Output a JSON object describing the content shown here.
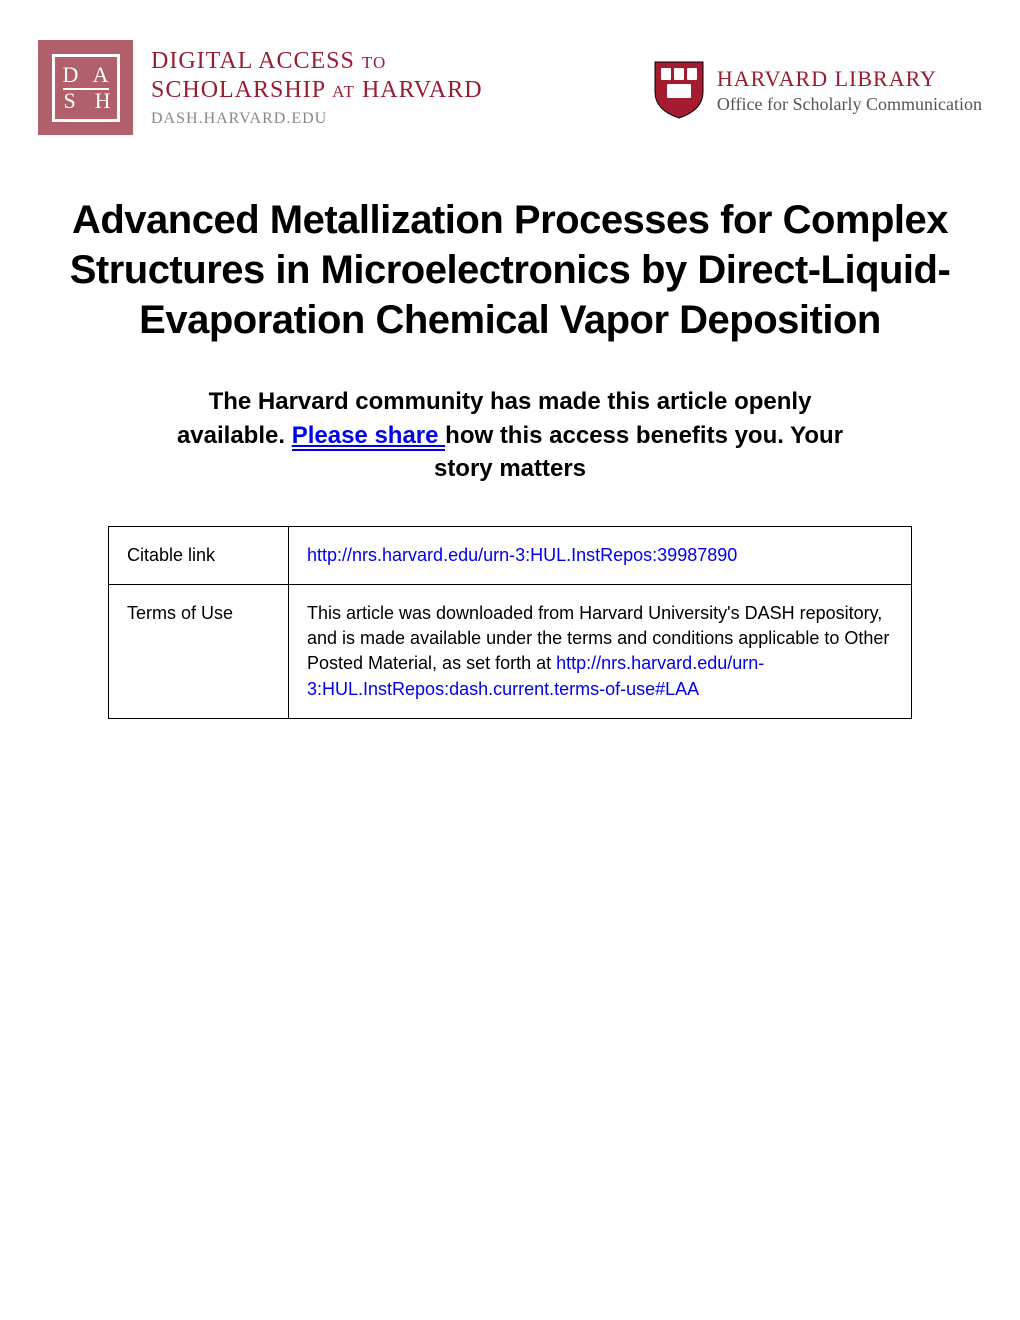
{
  "header": {
    "dash_logo": {
      "letters": [
        "D",
        "A",
        "S",
        "H"
      ],
      "bg_color": "#b25f6c",
      "text_color": "#ffffff"
    },
    "dash_title": {
      "line1_main1": "DIGITAL ACCESS",
      "line1_small": "TO",
      "line2_main1": "SCHOLARSHIP",
      "line2_small": "AT",
      "line2_main2": "HARVARD",
      "url": "DASH.HARVARD.EDU",
      "color": "#9a1c30"
    },
    "harvard": {
      "line1": "HARVARD LIBRARY",
      "line2": "Office for Scholarly Communication",
      "color": "#9a1c30",
      "shield_color": "#a51c30"
    }
  },
  "title": "Advanced Metallization Processes for Complex Structures in Microelectronics by Direct-Liquid-Evaporation Chemical Vapor Deposition",
  "community": {
    "part1": "The Harvard community has made this article openly available. ",
    "link": " Please share ",
    "part2": " how this access benefits you. Your story matters"
  },
  "table": {
    "rows": [
      {
        "label": "Citable link",
        "content_parts": [
          {
            "text": "http://nrs.harvard.edu/urn-3:HUL.InstRepos:39987890",
            "is_link": true
          }
        ]
      },
      {
        "label": "Terms of Use",
        "content_parts": [
          {
            "text": "This article was downloaded from Harvard University's DASH repository, and is made available under the terms and conditions applicable to Other Posted Material, as set forth at ",
            "is_link": false
          },
          {
            "text": "http://nrs.harvard.edu/urn-3:HUL.InstRepos:dash.current.terms-of-use#LAA",
            "is_link": true
          }
        ]
      }
    ]
  },
  "colors": {
    "link": "#0000ee",
    "text": "#000000",
    "background": "#ffffff"
  }
}
